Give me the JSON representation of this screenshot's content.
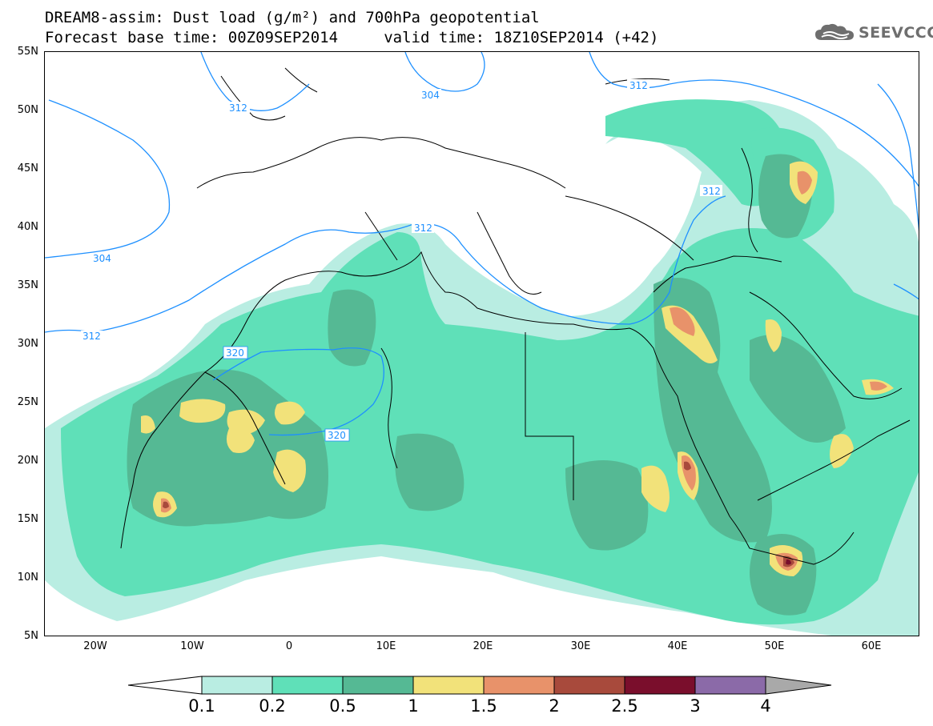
{
  "header": {
    "title_line1": "DREAM8-assim: Dust load (g/m²) and 700hPa geopotential",
    "title_line2": "Forecast base time: 00Z09SEP2014     valid time: 18Z10SEP2014 (+42)"
  },
  "logo": {
    "text": "SEEVCCC",
    "icon": "cloud-icon",
    "color": "#6e6e6e"
  },
  "axes": {
    "lat_labels": [
      "55N",
      "50N",
      "45N",
      "40N",
      "35N",
      "30N",
      "25N",
      "20N",
      "15N",
      "10N",
      "5N"
    ],
    "lon_labels": [
      "20W",
      "10W",
      "0",
      "10E",
      "20E",
      "30E",
      "40E",
      "50E",
      "60E"
    ]
  },
  "contours": {
    "labels": [
      "312",
      "304",
      "312",
      "312",
      "304",
      "312",
      "320",
      "320",
      "312"
    ]
  },
  "colorbar": {
    "labels": [
      "0.1",
      "0.2",
      "0.5",
      "1",
      "1.5",
      "2",
      "2.5",
      "3",
      "4"
    ],
    "colors": [
      "#ffffff",
      "#b9ede2",
      "#5fe0b8",
      "#55b994",
      "#f2e27a",
      "#e8926a",
      "#a84a3c",
      "#7a0e2c",
      "#8b6aa8",
      "#a9a9a9"
    ]
  },
  "dust_colors": {
    "level1": "#b9ede2",
    "level2": "#5fe0b8",
    "level3": "#55b994",
    "level4": "#f2e27a",
    "level5": "#e8926a",
    "level6": "#a84a3c",
    "level7": "#7a0e2c"
  }
}
